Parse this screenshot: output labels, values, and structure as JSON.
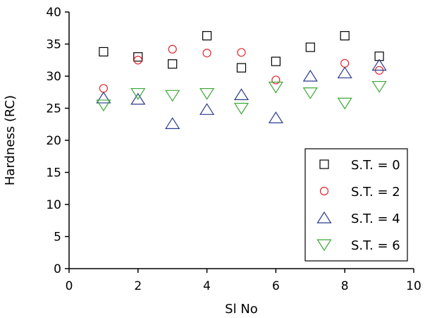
{
  "chart_data": {
    "type": "scatter",
    "title": "",
    "xlabel": "Sl No",
    "ylabel": "Hardness (RC)",
    "xlim": [
      0,
      10
    ],
    "ylim": [
      0,
      40
    ],
    "xticks": [
      0,
      2,
      4,
      6,
      8,
      10
    ],
    "yticks": [
      0,
      5,
      10,
      15,
      20,
      25,
      30,
      35,
      40
    ],
    "grid": false,
    "legend_position": "bottom-right",
    "series": [
      {
        "name": "S.T. = 0",
        "marker": "square",
        "color": "#000000",
        "x": [
          1,
          2,
          3,
          4,
          5,
          6,
          7,
          8,
          9
        ],
        "y": [
          33.8,
          33.0,
          31.9,
          36.3,
          31.3,
          32.3,
          34.5,
          36.3,
          33.1
        ]
      },
      {
        "name": "S.T. = 2",
        "marker": "circle",
        "color": "#e3242b",
        "x": [
          1,
          2,
          3,
          4,
          5,
          6,
          7,
          8,
          9
        ],
        "y": [
          28.1,
          32.5,
          34.2,
          33.6,
          33.7,
          29.4,
          null,
          32.0,
          30.9
        ]
      },
      {
        "name": "S.T. = 4",
        "marker": "triangle-up",
        "color": "#2a3a8f",
        "x": [
          1,
          2,
          3,
          4,
          5,
          6,
          7,
          8,
          9
        ],
        "y": [
          26.6,
          26.4,
          22.6,
          24.8,
          27.1,
          23.5,
          30.0,
          30.5,
          31.7
        ]
      },
      {
        "name": "S.T. = 6",
        "marker": "triangle-down",
        "color": "#3aa935",
        "x": [
          1,
          2,
          3,
          4,
          5,
          6,
          7,
          8,
          9
        ],
        "y": [
          25.5,
          27.3,
          27.0,
          27.3,
          25.0,
          28.3,
          27.4,
          25.8,
          28.4
        ]
      }
    ]
  }
}
